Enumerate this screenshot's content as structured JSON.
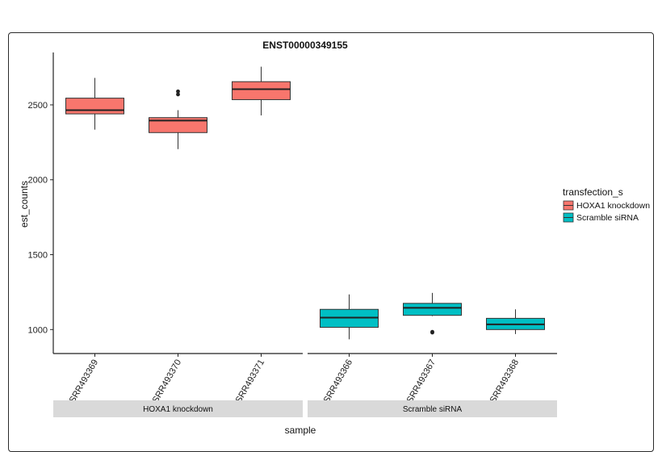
{
  "chart_data": {
    "type": "boxplot",
    "title": "ENST00000349155",
    "xlabel": "sample",
    "ylabel": "est_counts",
    "ylim": [
      840,
      2850
    ],
    "yticks": [
      1000,
      1500,
      2000,
      2500
    ],
    "facets": [
      {
        "label": "HOXA1 knockdown",
        "samples": [
          {
            "label": "SRR493369",
            "group": "HOXA1 knockdown",
            "whisker_low": 2335,
            "q1": 2440,
            "median": 2465,
            "q3": 2545,
            "whisker_high": 2680,
            "outliers": []
          },
          {
            "label": "SRR493370",
            "group": "HOXA1 knockdown",
            "whisker_low": 2205,
            "q1": 2315,
            "median": 2395,
            "q3": 2415,
            "whisker_high": 2465,
            "outliers": [
              2570,
              2590
            ]
          },
          {
            "label": "SRR493371",
            "group": "HOXA1 knockdown",
            "whisker_low": 2430,
            "q1": 2535,
            "median": 2605,
            "q3": 2655,
            "whisker_high": 2755,
            "outliers": []
          }
        ]
      },
      {
        "label": "Scramble siRNA",
        "samples": [
          {
            "label": "SRR493366",
            "group": "Scramble siRNA",
            "whisker_low": 935,
            "q1": 1015,
            "median": 1080,
            "q3": 1135,
            "whisker_high": 1235,
            "outliers": []
          },
          {
            "label": "SRR493367",
            "group": "Scramble siRNA",
            "whisker_low": 1090,
            "q1": 1095,
            "median": 1145,
            "q3": 1175,
            "whisker_high": 1245,
            "outliers": [
              980,
              985
            ]
          },
          {
            "label": "SRR493368",
            "group": "Scramble siRNA",
            "whisker_low": 970,
            "q1": 1000,
            "median": 1035,
            "q3": 1075,
            "whisker_high": 1135,
            "outliers": []
          }
        ]
      }
    ],
    "legend": {
      "title": "transfection_s",
      "placement": "right",
      "entries": [
        {
          "label": "HOXA1 knockdown",
          "color": "#F8766D"
        },
        {
          "label": "Scramble siRNA",
          "color": "#00BFC4"
        }
      ]
    },
    "grid": false
  }
}
